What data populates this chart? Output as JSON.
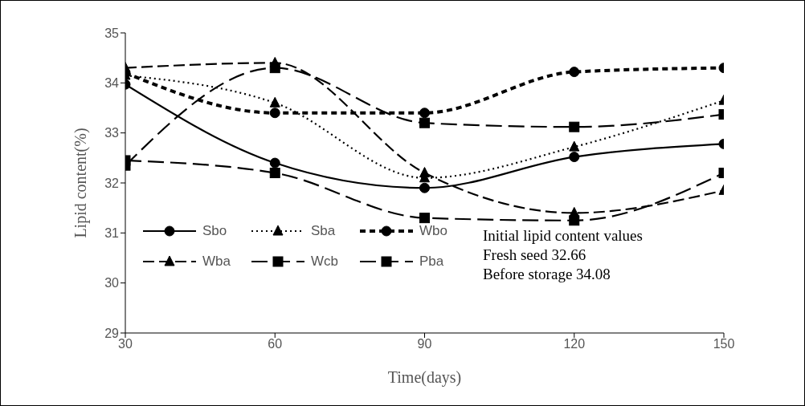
{
  "chart_data": {
    "type": "line",
    "xlabel": "Time(days)",
    "ylabel": "Lipid content(%)",
    "x": [
      30,
      60,
      90,
      120,
      150
    ],
    "xlim": [
      30,
      150
    ],
    "xticks": [
      30,
      60,
      90,
      120,
      150
    ],
    "ylim": [
      29,
      35
    ],
    "yticks": [
      29,
      30,
      31,
      32,
      33,
      34,
      35
    ],
    "legend": "bottom left",
    "annotations": [
      "Initial lipid content values",
      "Fresh seed 32.66",
      "Before storage 34.08"
    ],
    "series": [
      {
        "name": "Sbo",
        "color": "#000000",
        "marker": "circle",
        "line_style": "solid",
        "values": [
          33.97,
          32.4,
          31.9,
          32.52,
          32.78
        ]
      },
      {
        "name": "Sba",
        "color": "#000000",
        "marker": "triangle",
        "line_style": "dotted",
        "values": [
          34.15,
          33.6,
          32.1,
          32.72,
          33.65
        ]
      },
      {
        "name": "Wbo",
        "color": "#000000",
        "marker": "circle",
        "line_style": "dashed",
        "values": [
          34.2,
          33.4,
          33.4,
          34.22,
          34.3
        ]
      },
      {
        "name": "Wba",
        "color": "#000000",
        "marker": "triangle",
        "line_style": "dashed",
        "values": [
          34.3,
          34.4,
          32.2,
          31.4,
          31.85
        ]
      },
      {
        "name": "Wcb",
        "color": "#000000",
        "marker": "square",
        "line_style": "dashed",
        "values": [
          32.35,
          34.3,
          33.2,
          33.12,
          33.37
        ]
      },
      {
        "name": "Pba",
        "color": "#000000",
        "marker": "square",
        "line_style": "dashed",
        "values": [
          32.45,
          32.2,
          31.3,
          31.25,
          32.2
        ]
      }
    ]
  }
}
